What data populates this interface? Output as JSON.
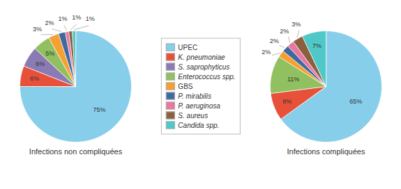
{
  "chart_data": [
    {
      "type": "pie",
      "title": "Infections non compliquées",
      "categories": [
        "UPEC",
        "K. pneumoniae",
        "S. saprophyticus",
        "Enterococcus spp.",
        "GBS",
        "P. mirabilis",
        "P. aeruginosa",
        "S. aureus",
        "Candida spp."
      ],
      "values": [
        75,
        6,
        6,
        5,
        3,
        2,
        1,
        1,
        1
      ],
      "value_labels": [
        "75%",
        "6%",
        "6%",
        "5%",
        "3%",
        "2%",
        "1%",
        "1%",
        "1%"
      ],
      "colors": [
        "#87CEEB",
        "#E8503A",
        "#8B7BB5",
        "#90C060",
        "#F5A030",
        "#4169A0",
        "#E878A0",
        "#8B6040",
        "#50C8C8"
      ],
      "data_labels": true,
      "legend": "center"
    },
    {
      "type": "pie",
      "title": "Infections compliquées",
      "categories": [
        "UPEC",
        "K. pneumoniae",
        "Enterococcus spp.",
        "GBS",
        "P. mirabilis",
        "P. aeruginosa",
        "S. aureus",
        "Candida spp."
      ],
      "values": [
        65,
        8,
        11,
        2,
        2,
        2,
        3,
        7
      ],
      "value_labels": [
        "65%",
        "8%",
        "11%",
        "2%",
        "2%",
        "2%",
        "3%",
        "7%"
      ],
      "colors": [
        "#87CEEB",
        "#E8503A",
        "#90C060",
        "#F5A030",
        "#4169A0",
        "#E878A0",
        "#8B6040",
        "#50C8C8"
      ],
      "data_labels": true,
      "legend": "center"
    }
  ]
}
